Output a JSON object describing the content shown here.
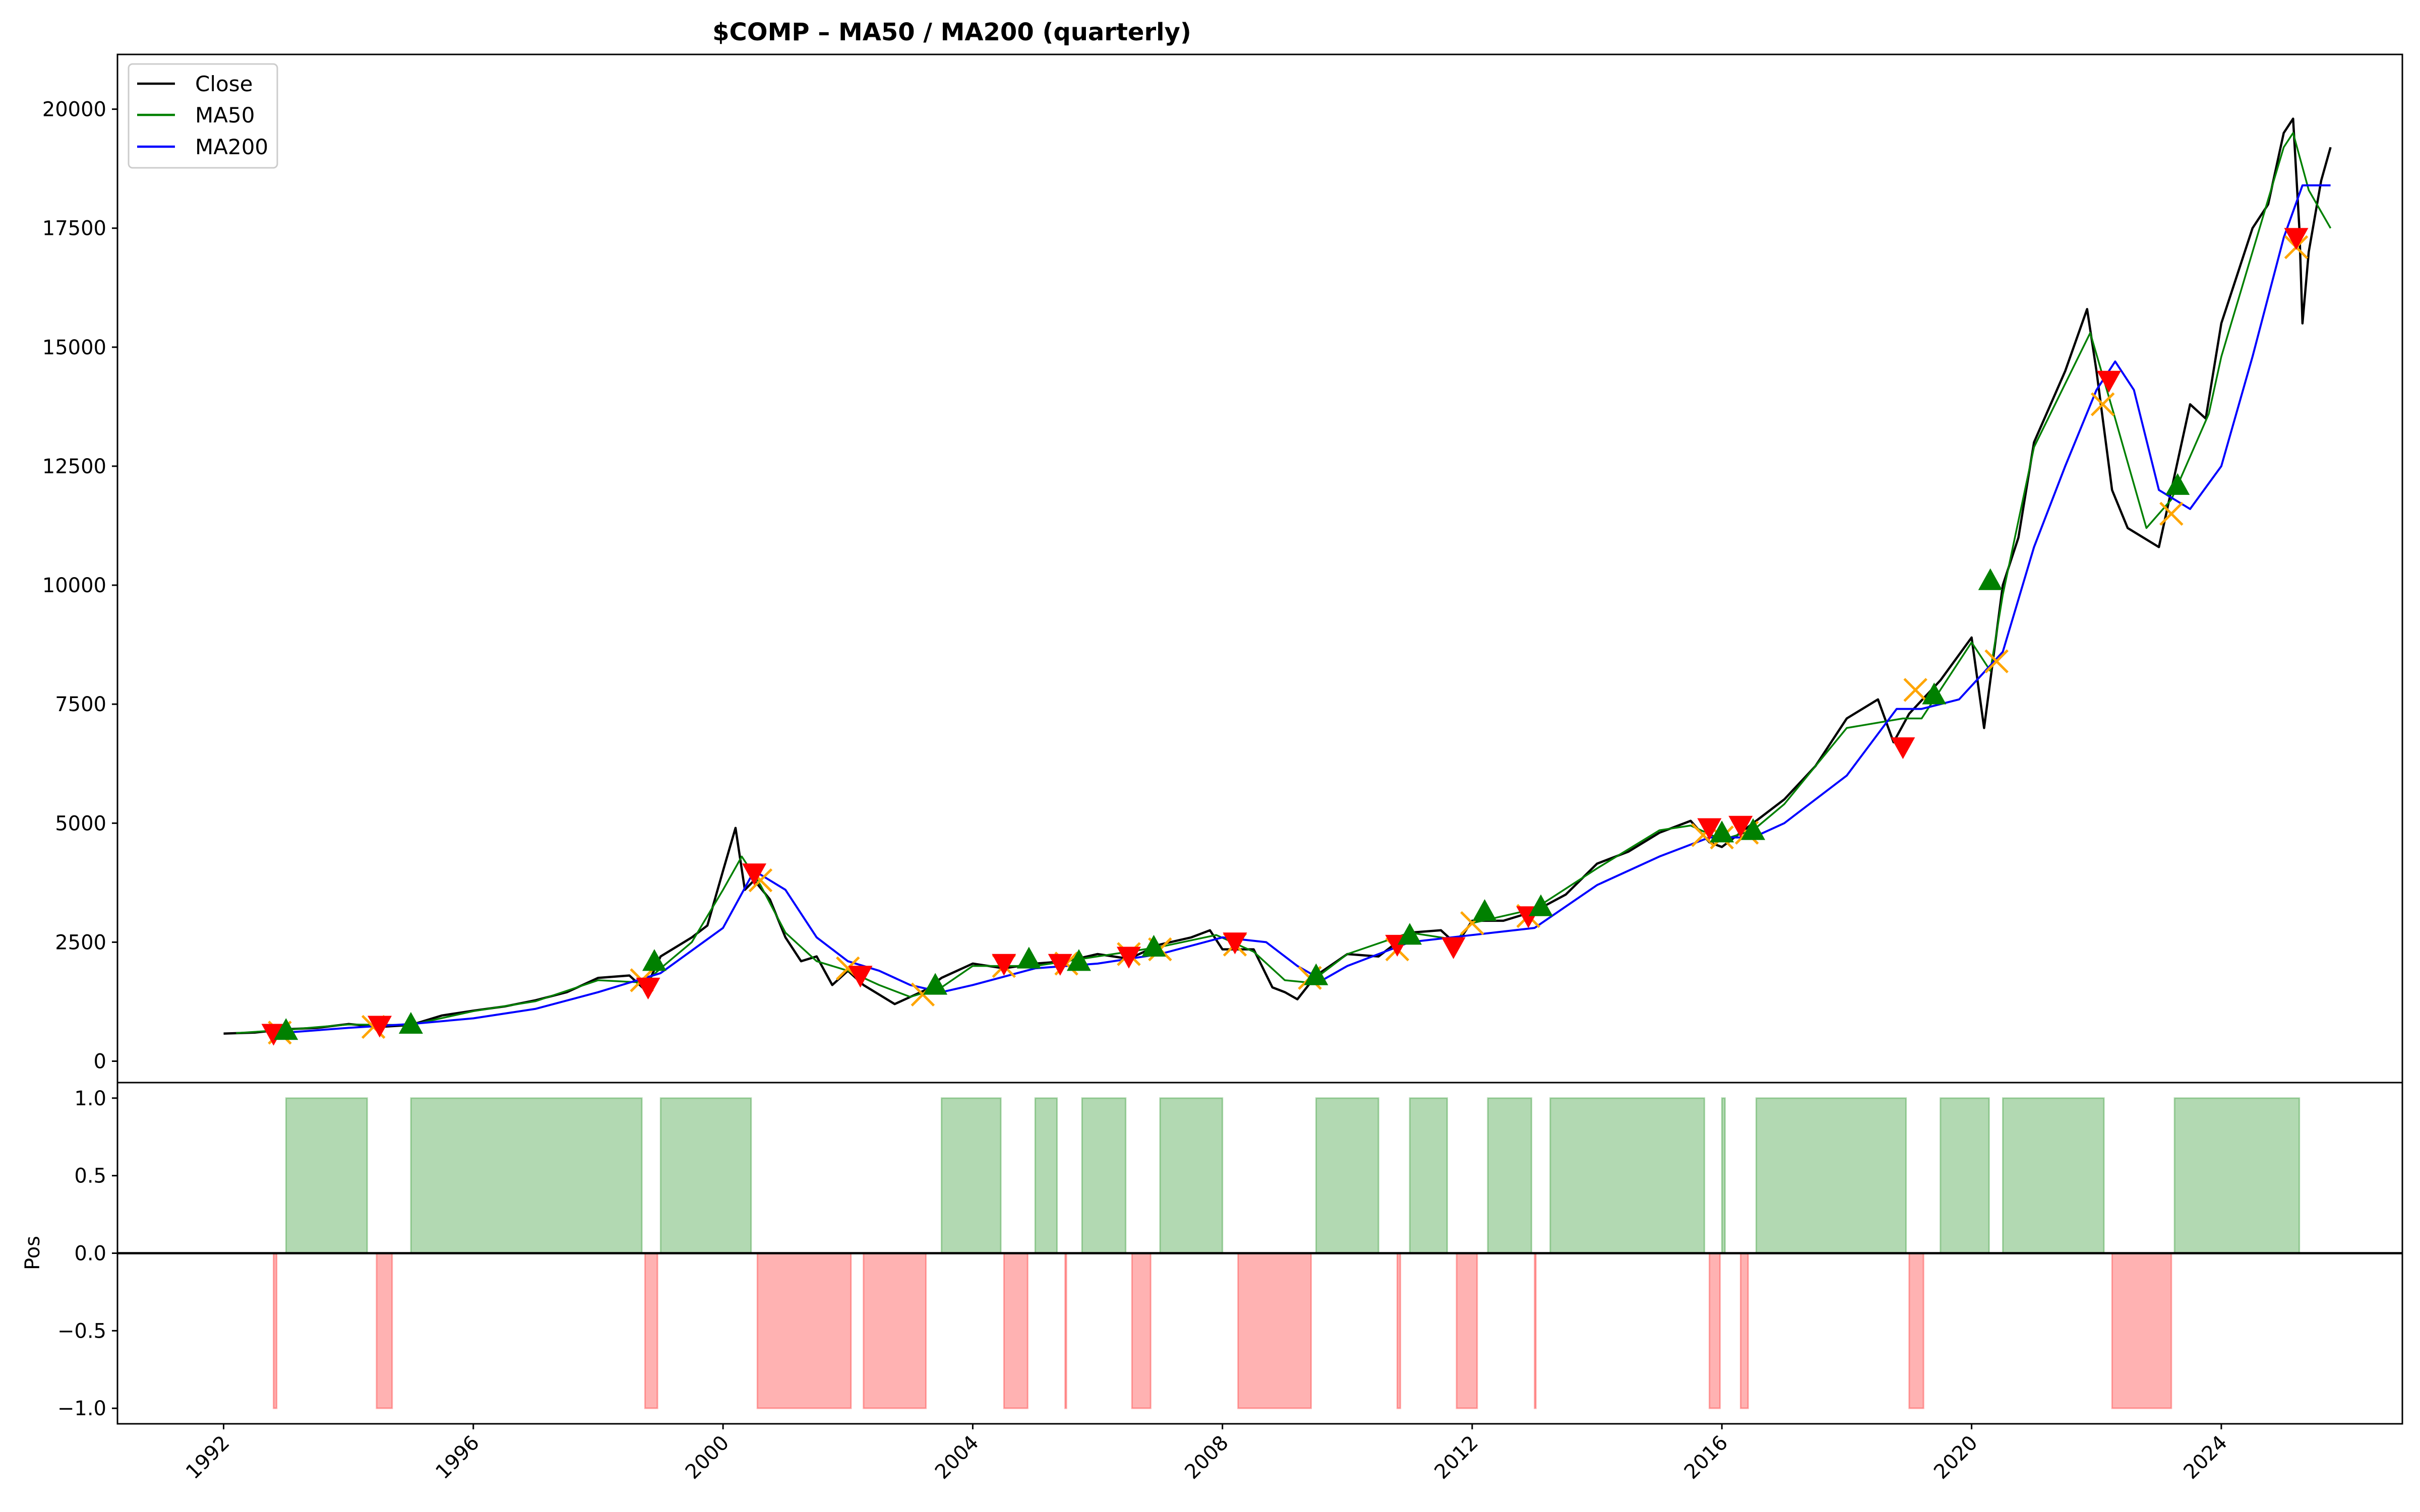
{
  "chart_data": [
    {
      "type": "line",
      "title": "$COMP – MA50 / MA200 (quarterly)",
      "xlabel": "",
      "ylabel": "",
      "xlim": [
        1990.3,
        2026.9
      ],
      "ylim": [
        -450,
        21150
      ],
      "yticks": [
        0,
        2500,
        5000,
        7500,
        10000,
        12500,
        15000,
        17500,
        20000
      ],
      "grid": false,
      "legend": "top-left",
      "series": [
        {
          "name": "Close",
          "color": "#000000",
          "x": [
            1992.0,
            1992.5,
            1993.0,
            1993.5,
            1994.0,
            1994.5,
            1995.0,
            1995.5,
            1996.0,
            1996.5,
            1997.0,
            1997.5,
            1998.0,
            1998.5,
            1998.75,
            1999.0,
            1999.5,
            1999.75,
            2000.0,
            2000.2,
            2000.35,
            2000.5,
            2000.75,
            2001.0,
            2001.25,
            2001.5,
            2001.75,
            2002.0,
            2002.25,
            2002.5,
            2002.75,
            2003.0,
            2003.25,
            2003.5,
            2004.0,
            2004.5,
            2005.0,
            2005.5,
            2006.0,
            2006.5,
            2007.0,
            2007.5,
            2007.8,
            2008.0,
            2008.5,
            2008.8,
            2009.0,
            2009.2,
            2009.5,
            2010.0,
            2010.5,
            2011.0,
            2011.5,
            2011.75,
            2012.0,
            2012.5,
            2013.0,
            2013.5,
            2014.0,
            2014.5,
            2015.0,
            2015.5,
            2015.8,
            2016.0,
            2016.5,
            2017.0,
            2017.5,
            2018.0,
            2018.5,
            2018.75,
            2019.0,
            2019.5,
            2020.0,
            2020.2,
            2020.5,
            2020.75,
            2021.0,
            2021.5,
            2021.85,
            2022.0,
            2022.25,
            2022.5,
            2022.75,
            2023.0,
            2023.5,
            2023.75,
            2024.0,
            2024.5,
            2024.75,
            2025.0,
            2025.15,
            2025.25,
            2025.3,
            2025.4,
            2025.6,
            2025.75
          ],
          "y": [
            580,
            600,
            670,
            700,
            780,
            720,
            760,
            960,
            1060,
            1150,
            1280,
            1450,
            1750,
            1800,
            1500,
            2200,
            2600,
            2850,
            4000,
            4900,
            3600,
            3800,
            3400,
            2600,
            2100,
            2200,
            1600,
            1900,
            1600,
            1400,
            1200,
            1350,
            1500,
            1750,
            2050,
            1950,
            2050,
            2100,
            2250,
            2150,
            2450,
            2600,
            2750,
            2350,
            2350,
            1550,
            1450,
            1300,
            1800,
            2250,
            2200,
            2700,
            2750,
            2450,
            2950,
            2950,
            3150,
            3500,
            4150,
            4400,
            4800,
            5050,
            4600,
            4500,
            5000,
            5500,
            6200,
            7200,
            7600,
            6700,
            7300,
            8000,
            8900,
            7000,
            10000,
            11000,
            13000,
            14500,
            15800,
            14500,
            12000,
            11200,
            11000,
            10800,
            13800,
            13500,
            15500,
            17500,
            18000,
            19500,
            19800,
            17500,
            15500,
            17000,
            18500,
            19200
          ]
        },
        {
          "name": "MA50",
          "color": "#008000",
          "x": [
            1992.2,
            1993.0,
            1994.0,
            1995.0,
            1996.0,
            1997.0,
            1998.0,
            1998.75,
            1999.0,
            1999.5,
            2000.0,
            2000.3,
            2000.6,
            2001.0,
            2001.5,
            2002.0,
            2002.5,
            2003.0,
            2003.5,
            2004.0,
            2005.0,
            2006.0,
            2007.0,
            2007.9,
            2008.5,
            2009.0,
            2009.4,
            2010.0,
            2011.0,
            2011.75,
            2012.0,
            2013.0,
            2014.0,
            2015.0,
            2015.5,
            2016.0,
            2016.5,
            2017.0,
            2018.0,
            2018.9,
            2019.2,
            2020.0,
            2020.3,
            2020.5,
            2021.0,
            2021.9,
            2022.3,
            2022.8,
            2023.2,
            2023.8,
            2024.0,
            2024.5,
            2025.0,
            2025.15,
            2025.4,
            2025.75
          ],
          "y": [
            590,
            660,
            770,
            760,
            1050,
            1260,
            1700,
            1650,
            1950,
            2500,
            3600,
            4300,
            3700,
            2700,
            2100,
            1900,
            1600,
            1350,
            1550,
            2000,
            2000,
            2200,
            2400,
            2650,
            2300,
            1700,
            1650,
            2250,
            2700,
            2550,
            2900,
            3200,
            4050,
            4850,
            4950,
            4650,
            4850,
            5400,
            7000,
            7200,
            7200,
            8800,
            8200,
            9800,
            12900,
            15300,
            13500,
            11200,
            11800,
            13600,
            14800,
            17000,
            19200,
            19500,
            18300,
            17500
          ]
        },
        {
          "name": "MA200",
          "color": "#0000ff",
          "x": [
            1993.0,
            1994.0,
            1995.0,
            1996.0,
            1997.0,
            1998.0,
            1999.0,
            2000.0,
            2000.5,
            2001.0,
            2001.5,
            2002.0,
            2002.5,
            2003.0,
            2003.5,
            2004.0,
            2005.0,
            2006.0,
            2007.0,
            2008.0,
            2008.7,
            2009.2,
            2009.6,
            2010.0,
            2011.0,
            2012.0,
            2013.0,
            2014.0,
            2015.0,
            2015.8,
            2016.5,
            2017.0,
            2018.0,
            2018.8,
            2019.2,
            2019.8,
            2020.5,
            2021.0,
            2021.5,
            2022.0,
            2022.3,
            2022.6,
            2023.0,
            2023.5,
            2024.0,
            2024.5,
            2025.0,
            2025.3,
            2025.75
          ],
          "y": [
            600,
            700,
            780,
            900,
            1100,
            1450,
            1850,
            2800,
            4000,
            3600,
            2600,
            2100,
            1900,
            1600,
            1450,
            1600,
            1950,
            2050,
            2250,
            2600,
            2500,
            2000,
            1700,
            2000,
            2500,
            2650,
            2800,
            3700,
            4300,
            4700,
            4700,
            5000,
            6000,
            7400,
            7400,
            7600,
            8600,
            10800,
            12500,
            14100,
            14700,
            14100,
            12000,
            11600,
            12500,
            14800,
            17300,
            18400,
            18400
          ]
        }
      ],
      "markers": {
        "cross_color": "#ffa500",
        "buy_color": "#008000",
        "sell_color": "#ff0000",
        "crosses": [
          [
            1992.9,
            600
          ],
          [
            1994.4,
            720
          ],
          [
            1998.7,
            1700
          ],
          [
            2000.6,
            3800
          ],
          [
            2002.0,
            1950
          ],
          [
            2003.2,
            1400
          ],
          [
            2004.5,
            2000
          ],
          [
            2005.5,
            2050
          ],
          [
            2006.5,
            2250
          ],
          [
            2007.0,
            2350
          ],
          [
            2008.2,
            2450
          ],
          [
            2009.4,
            1750
          ],
          [
            2010.8,
            2350
          ],
          [
            2012.0,
            2900
          ],
          [
            2012.9,
            3050
          ],
          [
            2015.7,
            4750
          ],
          [
            2016.0,
            4700
          ],
          [
            2016.4,
            4800
          ],
          [
            2019.1,
            7800
          ],
          [
            2020.4,
            8400
          ],
          [
            2022.1,
            13800
          ],
          [
            2023.2,
            11500
          ],
          [
            2025.2,
            17100
          ]
        ],
        "buy": [
          [
            1993.0,
            650
          ],
          [
            1995.0,
            780
          ],
          [
            1998.9,
            2100
          ],
          [
            2003.4,
            1600
          ],
          [
            2004.9,
            2150
          ],
          [
            2005.7,
            2100
          ],
          [
            2006.9,
            2400
          ],
          [
            2009.5,
            1800
          ],
          [
            2011.0,
            2650
          ],
          [
            2012.2,
            3150
          ],
          [
            2013.1,
            3250
          ],
          [
            2016.0,
            4800
          ],
          [
            2016.5,
            4850
          ],
          [
            2019.4,
            7700
          ],
          [
            2020.3,
            10100
          ],
          [
            2023.3,
            12100
          ]
        ],
        "sell": [
          [
            1992.8,
            580
          ],
          [
            1994.5,
            750
          ],
          [
            1998.8,
            1550
          ],
          [
            2000.5,
            3950
          ],
          [
            2002.2,
            1800
          ],
          [
            2004.5,
            2050
          ],
          [
            2005.4,
            2050
          ],
          [
            2006.5,
            2200
          ],
          [
            2008.2,
            2500
          ],
          [
            2010.8,
            2450
          ],
          [
            2011.7,
            2400
          ],
          [
            2012.9,
            3050
          ],
          [
            2015.8,
            4900
          ],
          [
            2016.3,
            4950
          ],
          [
            2018.9,
            6600
          ],
          [
            2022.2,
            14300
          ],
          [
            2025.2,
            17300
          ]
        ]
      }
    },
    {
      "type": "area",
      "title": "",
      "xlabel": "",
      "ylabel": "Pos",
      "xlim": [
        1990.3,
        2026.9
      ],
      "ylim": [
        -1.1,
        1.1
      ],
      "yticks": [
        -1.0,
        -0.5,
        0.0,
        0.5,
        1.0
      ],
      "xticks": [
        "1992",
        "1996",
        "2000",
        "2004",
        "2008",
        "2012",
        "2016",
        "2020",
        "2024"
      ],
      "long_color": "#008000",
      "short_color": "#ff0000",
      "long": [
        [
          1993.0,
          1994.3
        ],
        [
          1995.0,
          1998.7
        ],
        [
          1999.0,
          2000.45
        ],
        [
          2003.5,
          2004.45
        ],
        [
          2005.0,
          2005.35
        ],
        [
          2005.75,
          2006.45
        ],
        [
          2007.0,
          2008.0
        ],
        [
          2009.5,
          2010.5
        ],
        [
          2011.0,
          2011.6
        ],
        [
          2012.25,
          2012.95
        ],
        [
          2013.25,
          2015.72
        ],
        [
          2016.0,
          2016.05
        ],
        [
          2016.55,
          2018.95
        ],
        [
          2019.5,
          2020.28
        ],
        [
          2020.5,
          2022.12
        ],
        [
          2023.25,
          2025.25
        ]
      ],
      "short": [
        [
          1992.8,
          1992.85
        ],
        [
          1994.45,
          1994.7
        ],
        [
          1998.75,
          1998.95
        ],
        [
          2000.55,
          2002.05
        ],
        [
          2002.25,
          2003.25
        ],
        [
          2004.5,
          2004.88
        ],
        [
          2005.48,
          2005.5
        ],
        [
          2006.55,
          2006.85
        ],
        [
          2008.25,
          2009.42
        ],
        [
          2010.8,
          2010.85
        ],
        [
          2011.75,
          2012.08
        ],
        [
          2013.0,
          2013.02
        ],
        [
          2015.8,
          2015.97
        ],
        [
          2016.3,
          2016.42
        ],
        [
          2019.0,
          2019.23
        ],
        [
          2022.25,
          2023.2
        ]
      ]
    }
  ]
}
